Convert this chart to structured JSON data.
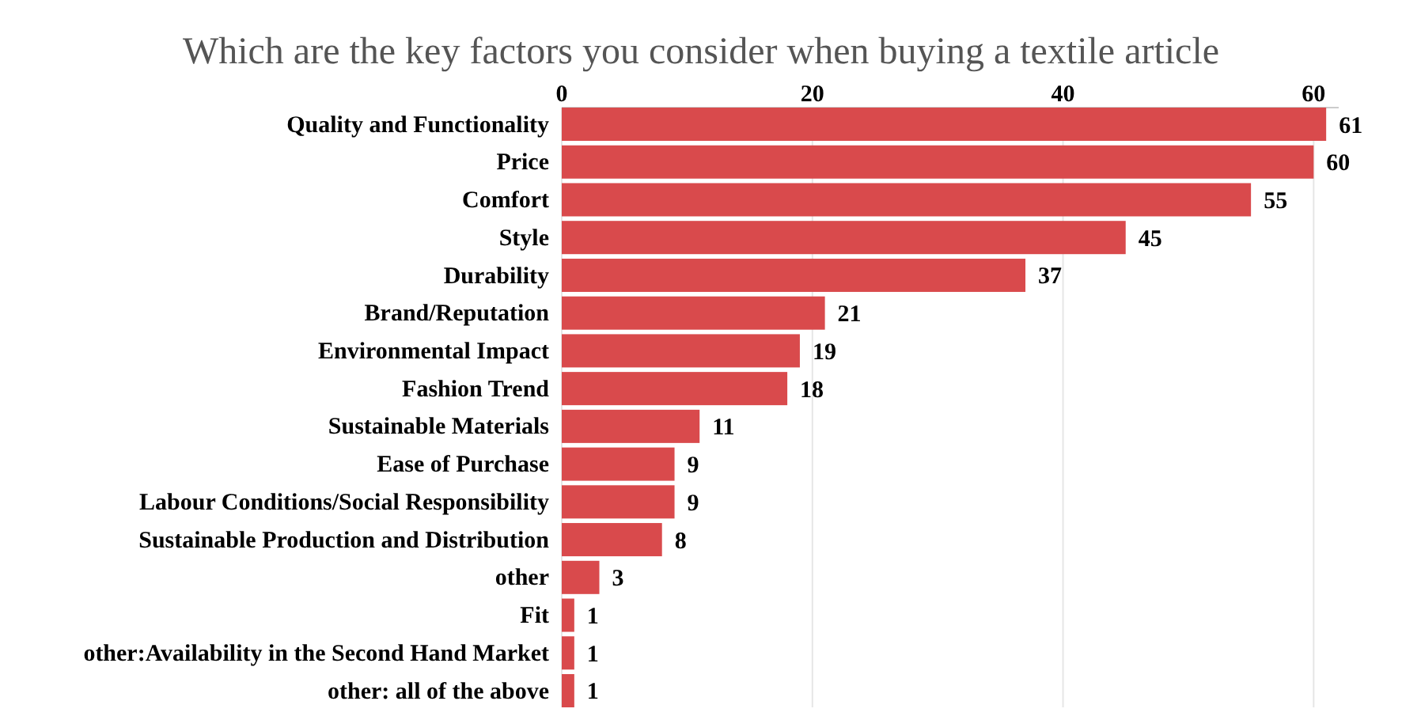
{
  "chart_data": {
    "type": "bar",
    "orientation": "horizontal",
    "title": "Which are the key factors you consider when buying a textile article",
    "categories": [
      "Quality and Functionality",
      "Price",
      "Comfort",
      "Style",
      "Durability",
      "Brand/Reputation",
      "Environmental Impact",
      "Fashion Trend",
      "Sustainable Materials",
      "Ease of Purchase",
      "Labour Conditions/Social Responsibility",
      "Sustainable Production and Distribution",
      "other",
      "Fit",
      "other:Availability in the Second Hand Market",
      "other: all of the above"
    ],
    "values": [
      61,
      60,
      55,
      45,
      37,
      21,
      19,
      18,
      11,
      9,
      9,
      8,
      3,
      1,
      1,
      1
    ],
    "color": "#d94a4c",
    "xlim": [
      0,
      62
    ],
    "xticks": [
      0,
      20,
      40,
      60
    ],
    "grid": "x",
    "data_labels": true
  }
}
